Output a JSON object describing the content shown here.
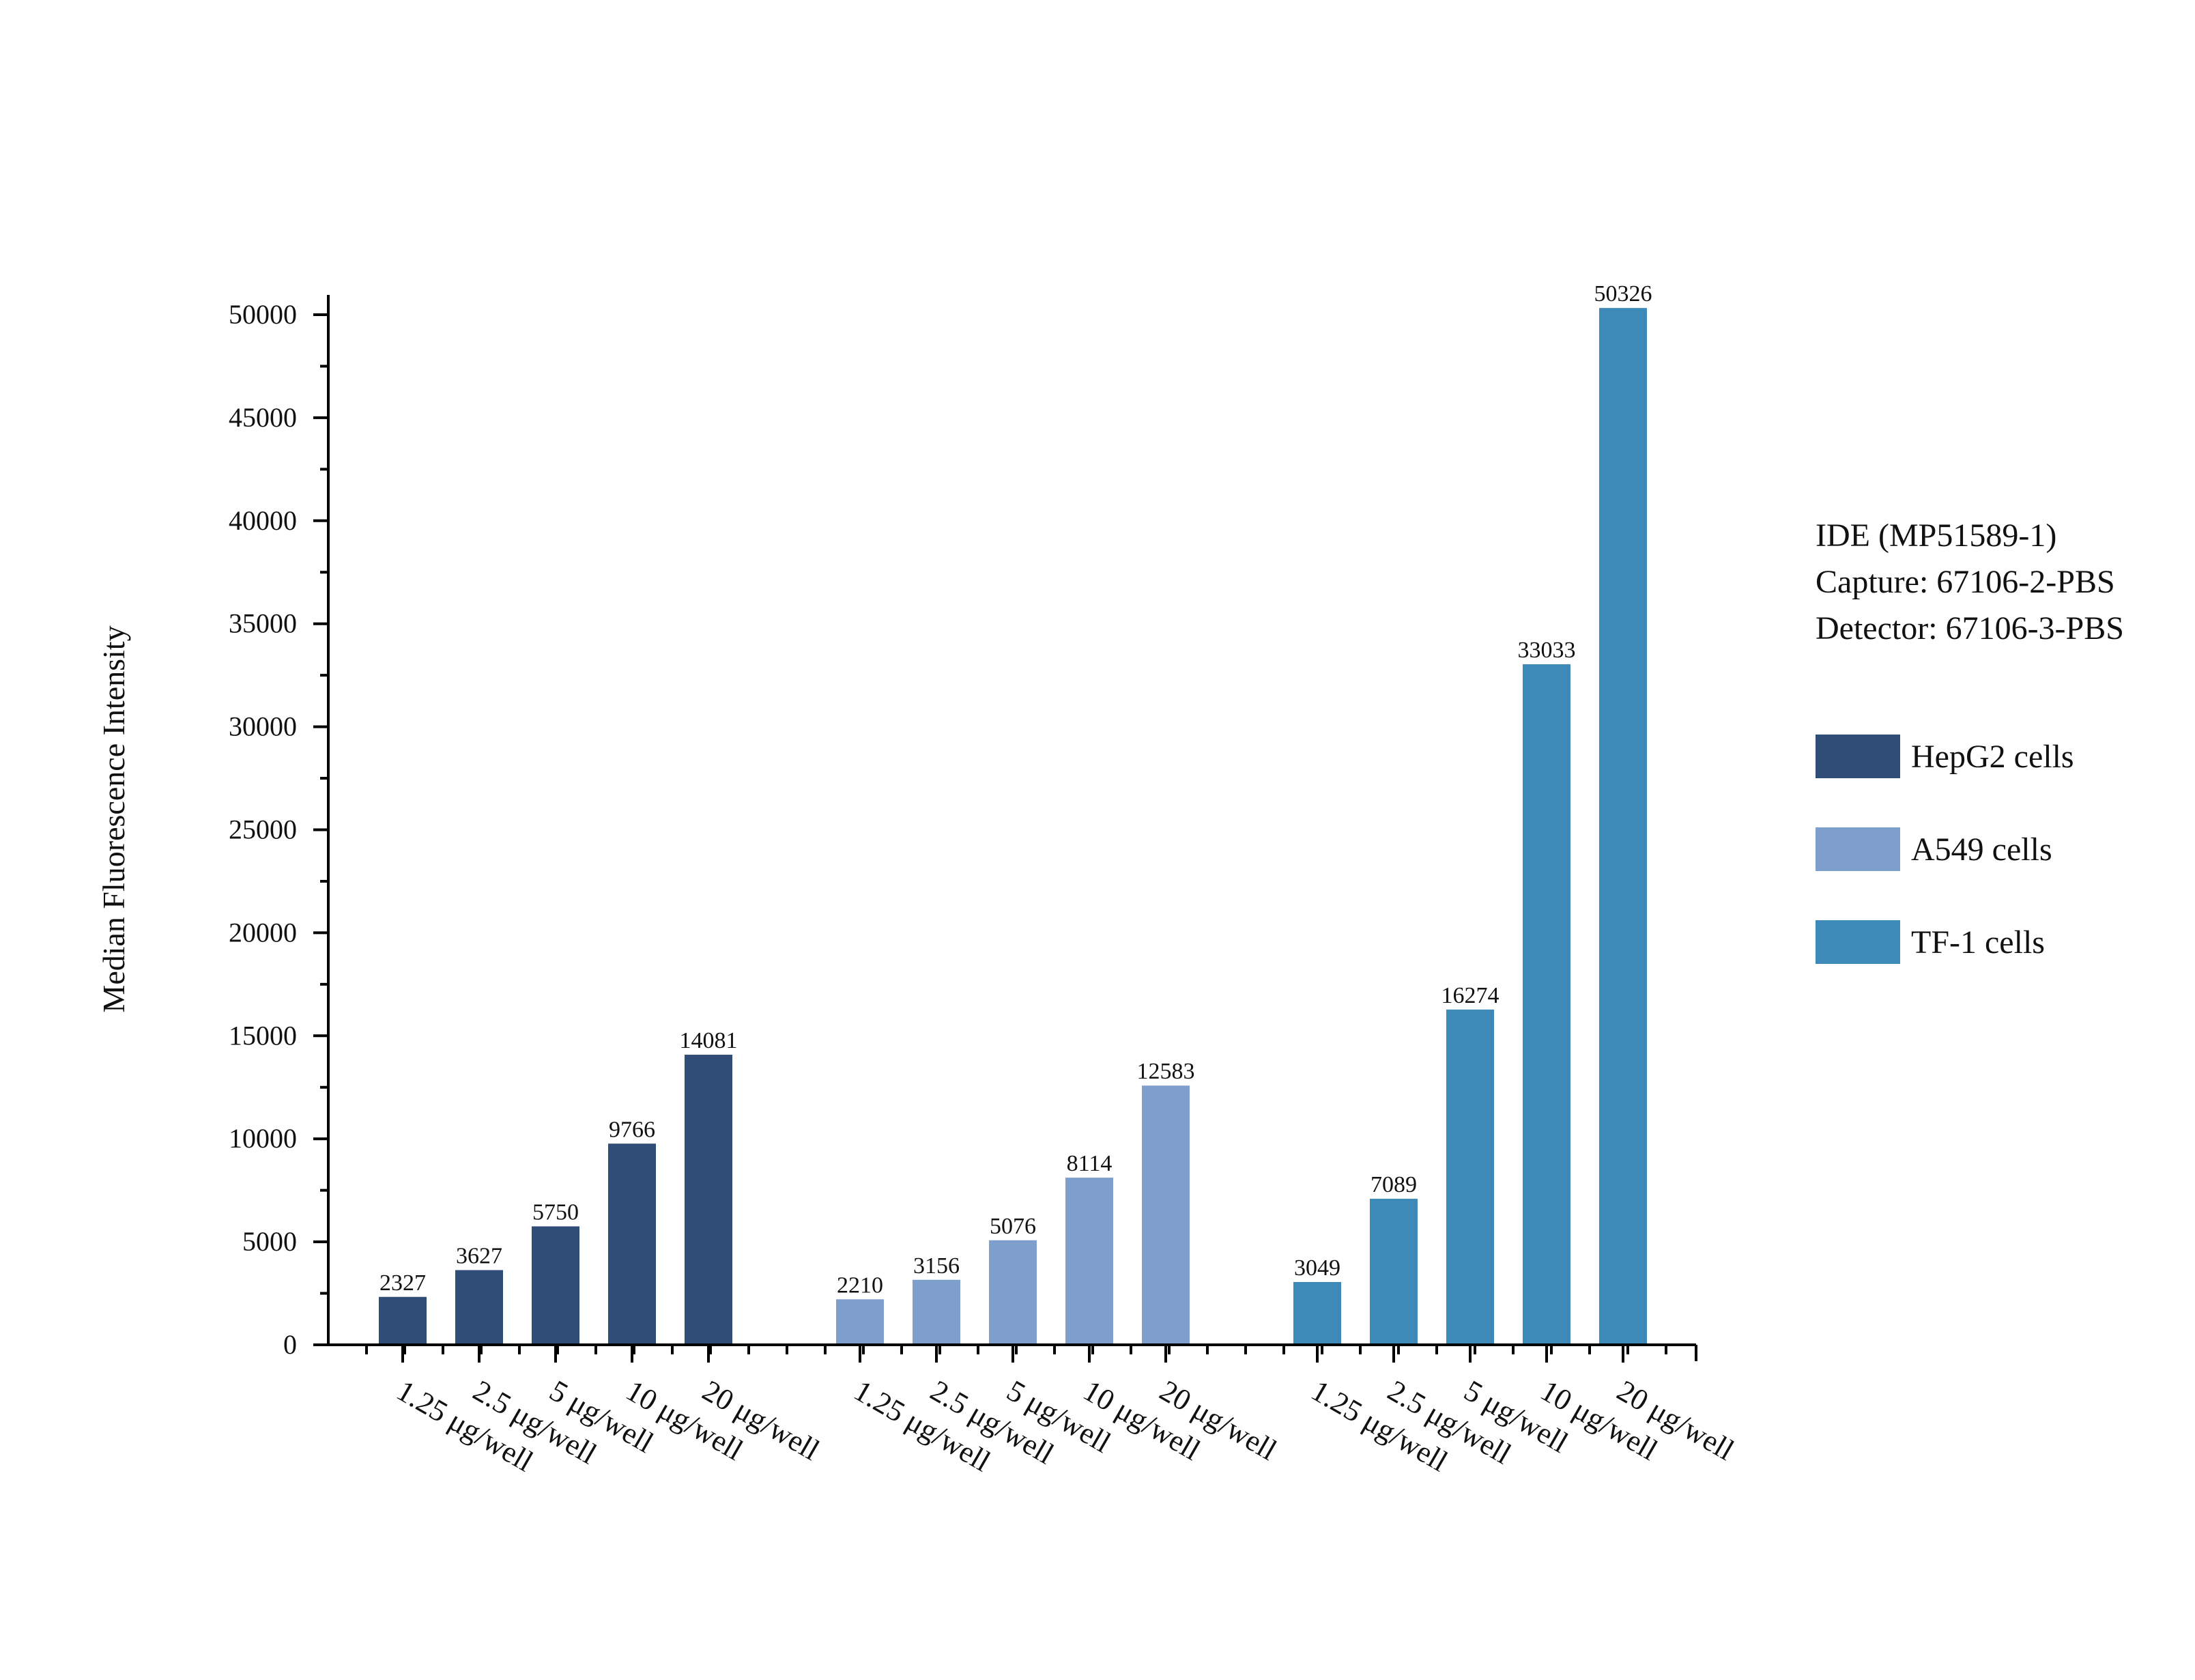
{
  "chart_data": {
    "type": "bar",
    "title": "",
    "xlabel": "",
    "ylabel": "Median Fluorescence Intensity",
    "ylim": [
      0,
      51000
    ],
    "yticks": [
      0,
      5000,
      10000,
      15000,
      20000,
      25000,
      30000,
      35000,
      40000,
      45000,
      50000
    ],
    "grid": false,
    "legend_position": "right",
    "annotation_lines": [
      "IDE (MP51589-1)",
      "Capture: 67106-2-PBS",
      "Detector: 67106-3-PBS"
    ],
    "categories": [
      "1.25 μg/well",
      "2.5 μg/well",
      "5 μg/well",
      "10 μg/well",
      "20 μg/well"
    ],
    "series": [
      {
        "name": "HepG2 cells",
        "color": "#2f4d77",
        "values": [
          2327,
          3627,
          5750,
          9766,
          14081
        ]
      },
      {
        "name": "A549 cells",
        "color": "#7e9fcc",
        "values": [
          2210,
          3156,
          5076,
          8114,
          12583
        ]
      },
      {
        "name": "TF-1 cells",
        "color": "#3d8ab8",
        "values": [
          3049,
          7089,
          16274,
          33033,
          50326
        ]
      }
    ]
  }
}
